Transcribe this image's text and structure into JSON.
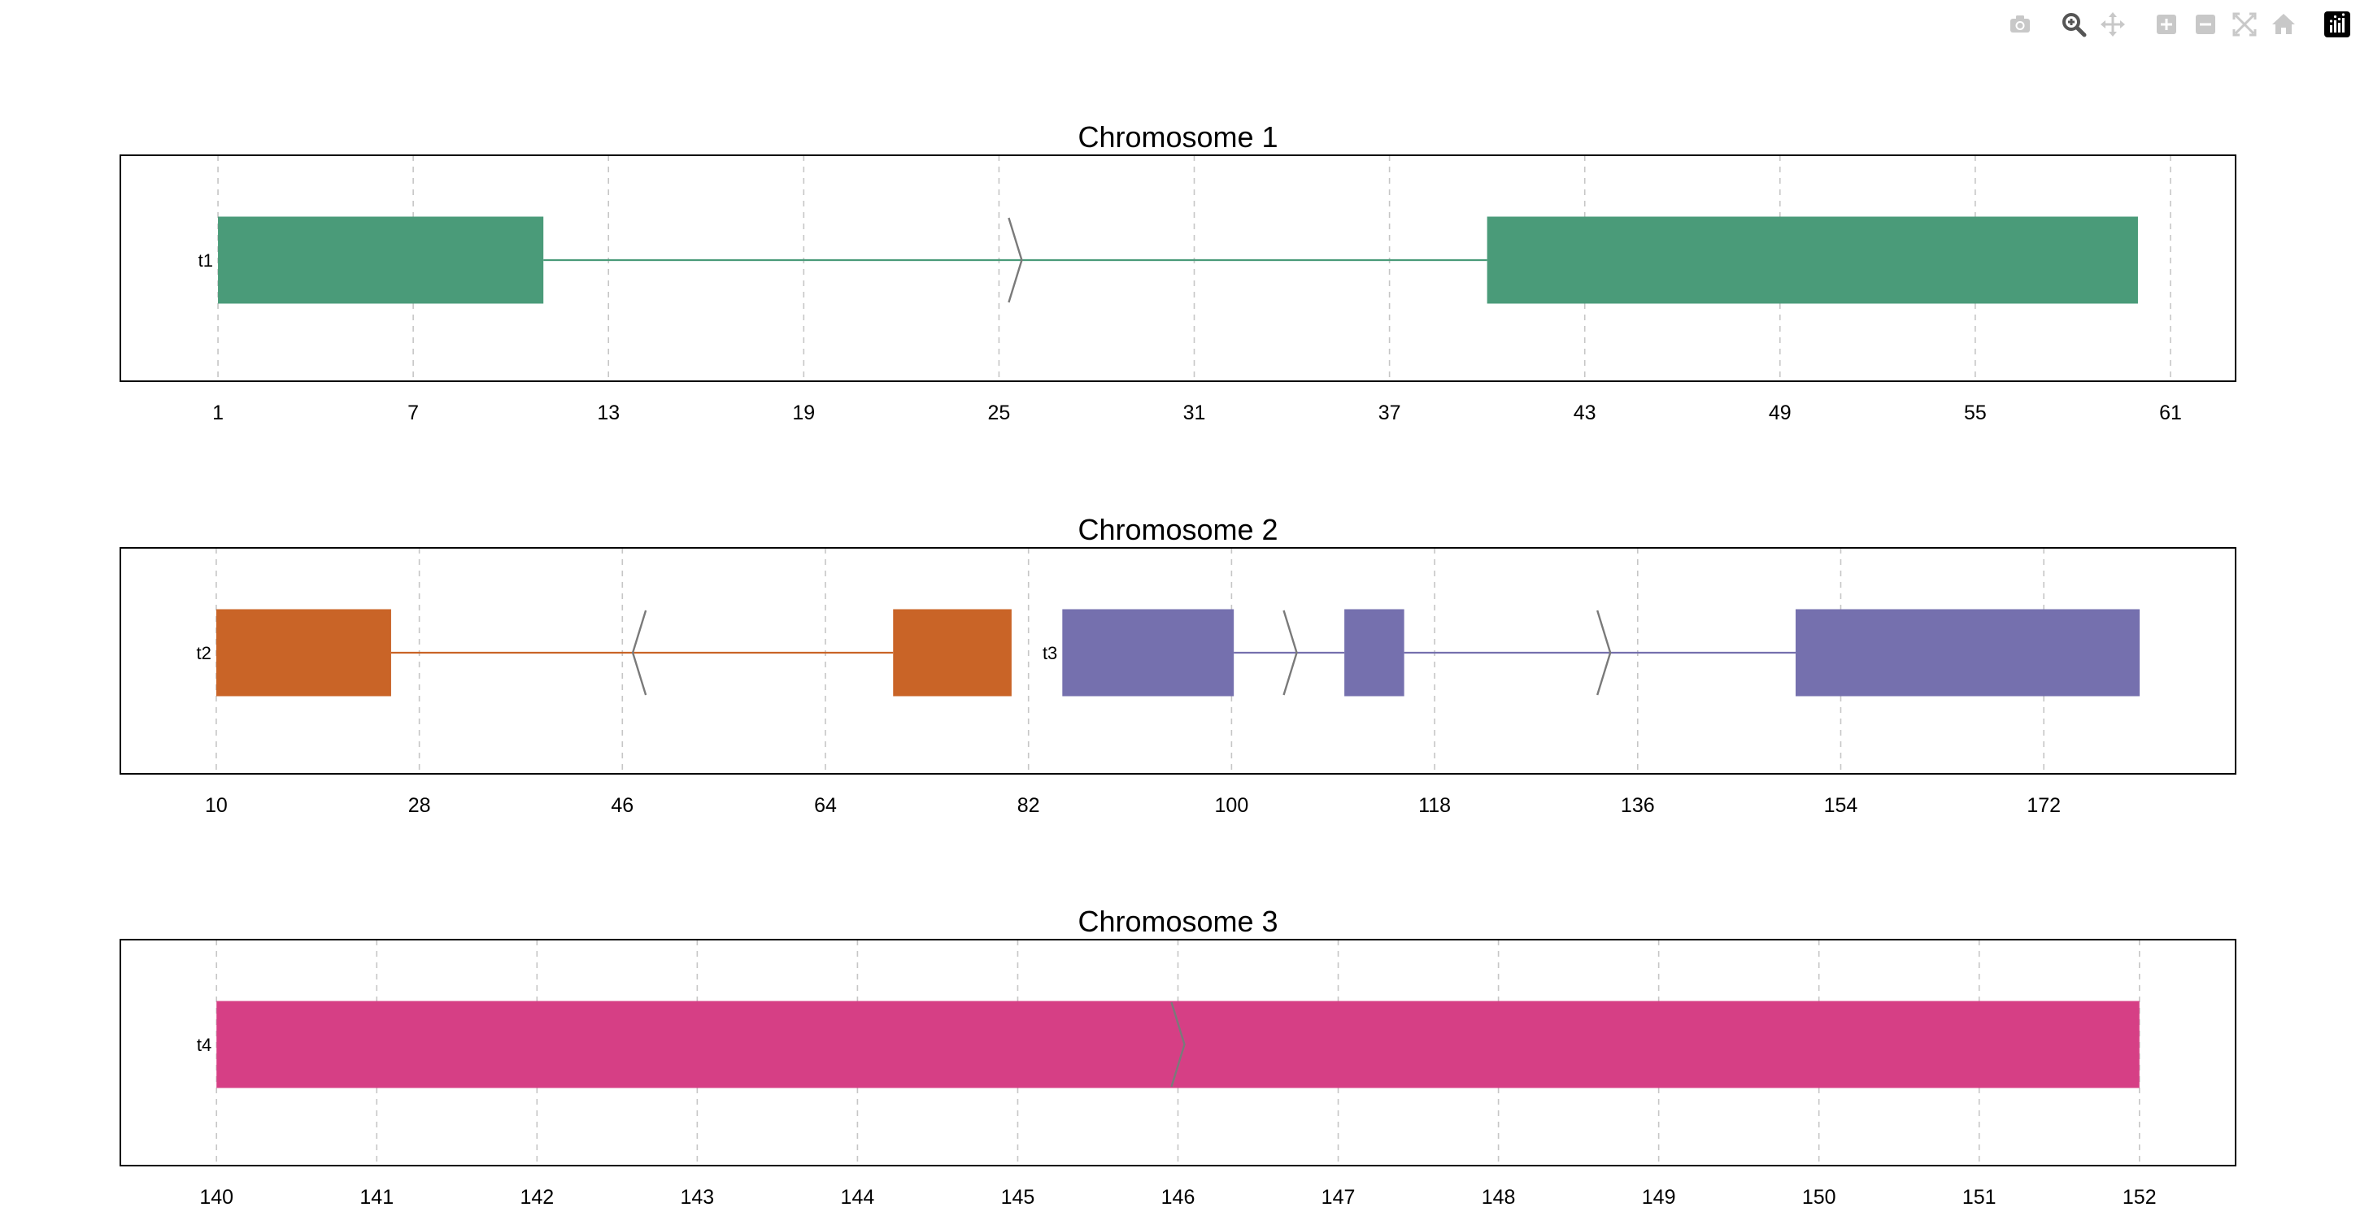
{
  "modebar": {
    "buttons": [
      {
        "name": "camera-icon",
        "active": false
      },
      {
        "name": "zoom-icon",
        "active": true
      },
      {
        "name": "pan-icon",
        "active": false
      },
      {
        "name": "zoom-in-icon",
        "active": false
      },
      {
        "name": "zoom-out-icon",
        "active": false
      },
      {
        "name": "autoscale-icon",
        "active": false
      },
      {
        "name": "reset-axes-icon",
        "active": false
      },
      {
        "name": "plotly-logo-icon",
        "active": false
      }
    ]
  },
  "chart_data": [
    {
      "type": "gene-structure",
      "title": "Chromosome 1",
      "xlim": [
        -2,
        63
      ],
      "ticks": [
        1,
        7,
        13,
        19,
        25,
        31,
        37,
        43,
        49,
        55,
        61
      ],
      "grid": true,
      "transcripts": [
        {
          "label": "t1",
          "color": "#4a9b79",
          "exons": [
            [
              1,
              11
            ],
            [
              40,
              60
            ]
          ],
          "introns": [
            [
              11,
              40
            ]
          ],
          "strand_arrows": [
            {
              "x": 25.5,
              "dir": "right"
            }
          ]
        }
      ]
    },
    {
      "type": "gene-structure",
      "title": "Chromosome 2",
      "xlim": [
        1.5,
        189
      ],
      "ticks": [
        10,
        28,
        46,
        64,
        82,
        100,
        118,
        136,
        154,
        172
      ],
      "grid": true,
      "transcripts": [
        {
          "label": "t2",
          "color": "#c96427",
          "exons": [
            [
              10,
              25.5
            ],
            [
              70,
              80.5
            ]
          ],
          "introns": [
            [
              25.5,
              70
            ]
          ],
          "strand_arrows": [
            {
              "x": 47.5,
              "dir": "left"
            }
          ]
        },
        {
          "label": "t3",
          "color": "#7570ae",
          "exons": [
            [
              85,
              100.2
            ],
            [
              110,
              115.3
            ],
            [
              150,
              180.5
            ]
          ],
          "introns": [
            [
              100.2,
              110
            ],
            [
              115.3,
              150
            ]
          ],
          "strand_arrows": [
            {
              "x": 105.2,
              "dir": "right"
            },
            {
              "x": 133,
              "dir": "right"
            }
          ]
        }
      ]
    },
    {
      "type": "gene-structure",
      "title": "Chromosome 3",
      "xlim": [
        139.4,
        152.6
      ],
      "ticks": [
        140,
        141,
        142,
        143,
        144,
        145,
        146,
        147,
        148,
        149,
        150,
        151,
        152
      ],
      "grid": true,
      "transcripts": [
        {
          "label": "t4",
          "color": "#d63f85",
          "exons": [
            [
              140,
              152
            ]
          ],
          "introns": [],
          "strand_arrows": [
            {
              "x": 146,
              "dir": "right"
            }
          ]
        }
      ]
    }
  ]
}
